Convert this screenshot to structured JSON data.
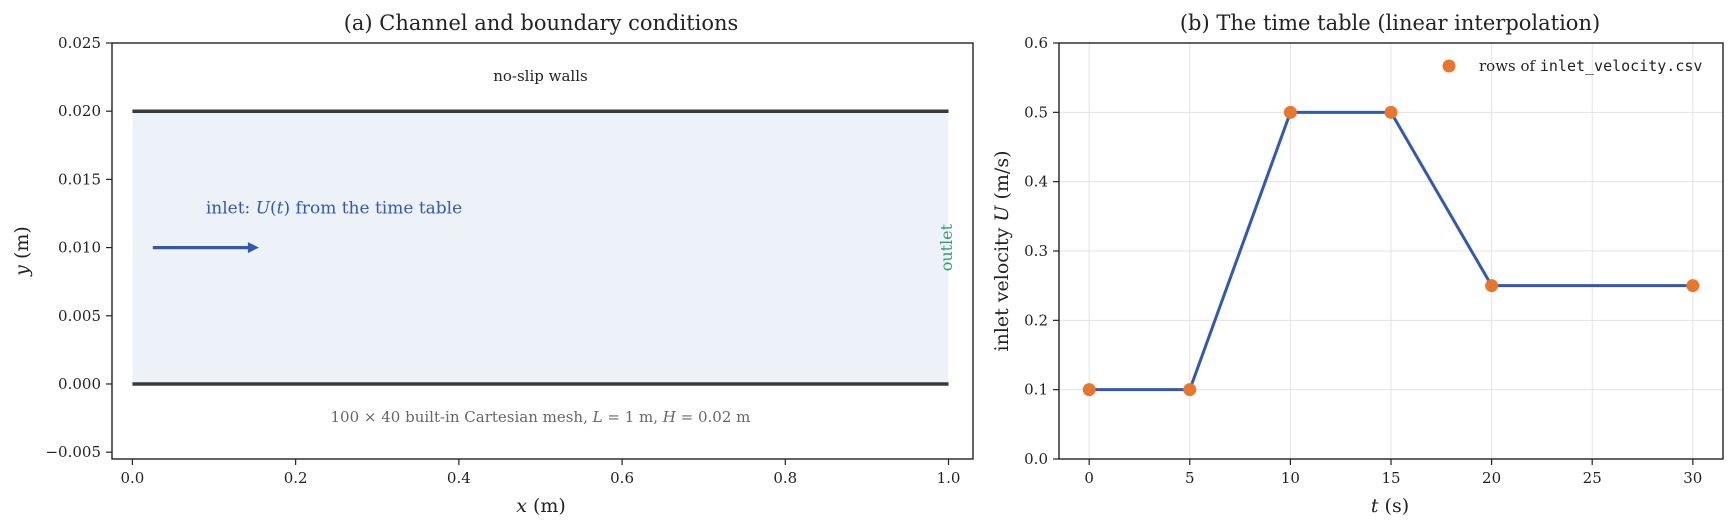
{
  "chart_data": [
    {
      "type": "diagram",
      "title": "(a) Channel and boundary conditions",
      "xlabel": "x (m)",
      "ylabel": "y (m)",
      "xlim": [
        -0.025,
        1.03
      ],
      "ylim": [
        -0.0055,
        0.025
      ],
      "xticks": [
        0.0,
        0.2,
        0.4,
        0.6,
        0.8,
        1.0
      ],
      "xtick_labels": [
        "0.0",
        "0.2",
        "0.4",
        "0.6",
        "0.8",
        "1.0"
      ],
      "yticks": [
        -0.005,
        0.0,
        0.005,
        0.01,
        0.015,
        0.02,
        0.025
      ],
      "ytick_labels": [
        "−0.005",
        "0.000",
        "0.005",
        "0.010",
        "0.015",
        "0.020",
        "0.025"
      ],
      "channel": {
        "x0": 0.0,
        "x1": 1.0,
        "y0": 0.0,
        "y1": 0.02
      },
      "arrow": {
        "x0": 0.025,
        "x1": 0.155,
        "y": 0.01
      },
      "annotations": {
        "walls": "no-slip walls",
        "inlet": "inlet: U(t) from the time table",
        "outlet": "outlet",
        "mesh": "100 × 40 built-in Cartesian mesh, L = 1 m, H = 0.02 m"
      },
      "colors": {
        "fill": "#edf2f9",
        "wall": "#3a3a3a",
        "inlet": "#3358b0",
        "outlet": "#2e9e6a",
        "note": "#555555"
      }
    },
    {
      "type": "line",
      "title": "(b) The time table (linear interpolation)",
      "xlabel": "t (s)",
      "ylabel": "inlet velocity U (m/s)",
      "xlim": [
        -1.5,
        31.5
      ],
      "ylim": [
        0.0,
        0.6
      ],
      "xticks": [
        0,
        5,
        10,
        15,
        20,
        25,
        30
      ],
      "yticks": [
        0.0,
        0.1,
        0.2,
        0.3,
        0.4,
        0.5,
        0.6
      ],
      "grid": true,
      "legend_position": "top-right",
      "legend": {
        "prefix": "rows of",
        "file": "inlet_velocity.csv"
      },
      "series": [
        {
          "x": [
            0,
            5,
            10,
            15,
            20,
            30
          ],
          "y": [
            0.1,
            0.1,
            0.5,
            0.5,
            0.25,
            0.25
          ]
        }
      ],
      "colors": {
        "line": "#3358b0",
        "marker": "#e8772e"
      }
    }
  ]
}
